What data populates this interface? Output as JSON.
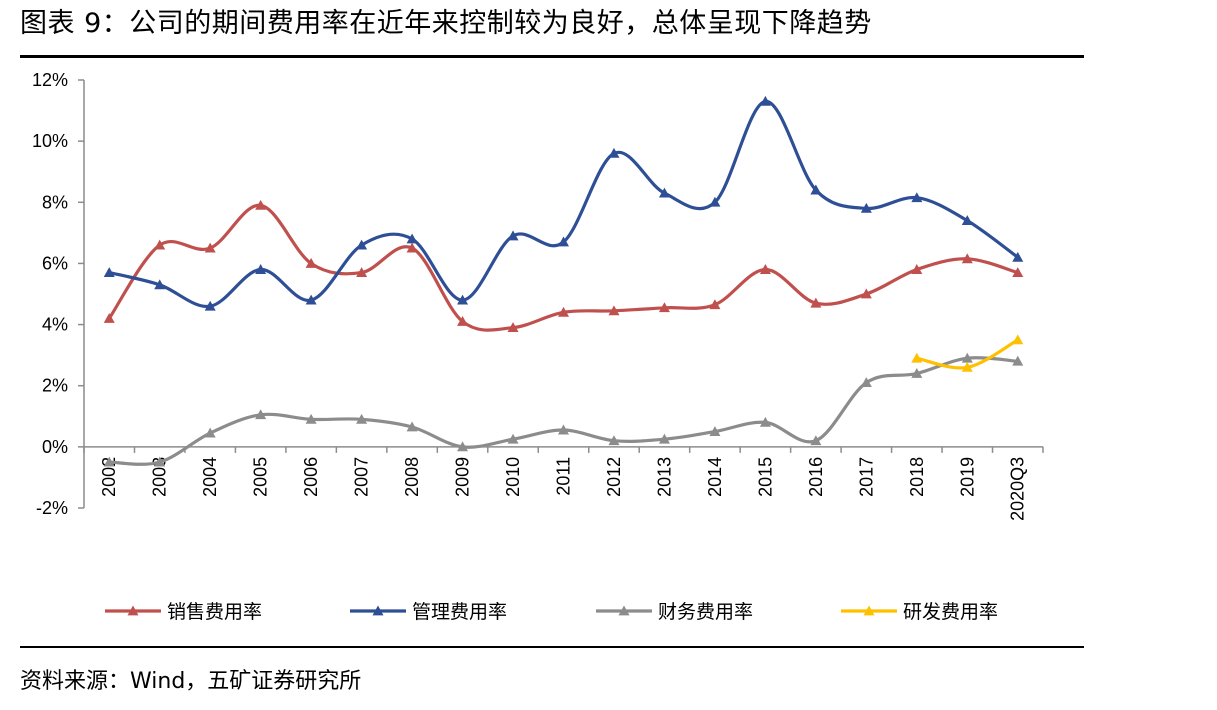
{
  "header": {
    "title": "图表 9：公司的期间费用率在近年来控制较为良好，总体呈现下降趋势"
  },
  "footer": {
    "source": "资料来源：Wind，五矿证券研究所"
  },
  "chart_data": {
    "type": "line",
    "title": "",
    "xlabel": "",
    "ylabel": "",
    "categories": [
      "2002",
      "2003",
      "2004",
      "2005",
      "2006",
      "2007",
      "2008",
      "2009",
      "2010",
      "2011",
      "2012",
      "2013",
      "2014",
      "2015",
      "2016",
      "2017",
      "2018",
      "2019",
      "2020Q3"
    ],
    "yticks": [
      "-2%",
      "0%",
      "2%",
      "4%",
      "6%",
      "8%",
      "10%",
      "12%"
    ],
    "ylim": [
      -2,
      12
    ],
    "y_unit": "%",
    "grid": false,
    "legend_position": "bottom",
    "series": [
      {
        "name": "销售费用率",
        "color": "#c0504d",
        "values": [
          4.2,
          6.6,
          6.5,
          7.9,
          6.0,
          5.7,
          6.5,
          4.1,
          3.9,
          4.4,
          4.45,
          4.55,
          4.65,
          5.8,
          4.7,
          5.0,
          5.8,
          6.15,
          5.7
        ]
      },
      {
        "name": "管理费用率",
        "color": "#2e4f96",
        "values": [
          5.7,
          5.3,
          4.6,
          5.8,
          4.8,
          6.6,
          6.8,
          4.8,
          6.9,
          6.7,
          9.6,
          8.3,
          8.0,
          11.3,
          8.4,
          7.8,
          8.15,
          7.4,
          6.2
        ]
      },
      {
        "name": "财务费用率",
        "color": "#8c8c8c",
        "values": [
          -0.5,
          -0.5,
          0.45,
          1.05,
          0.9,
          0.9,
          0.65,
          0.0,
          0.25,
          0.55,
          0.2,
          0.25,
          0.5,
          0.8,
          0.2,
          2.1,
          2.4,
          2.9,
          2.8
        ]
      },
      {
        "name": "研发费用率",
        "color": "#ffc000",
        "values": [
          null,
          null,
          null,
          null,
          null,
          null,
          null,
          null,
          null,
          null,
          null,
          null,
          null,
          null,
          null,
          null,
          2.9,
          2.6,
          3.5
        ]
      }
    ]
  }
}
